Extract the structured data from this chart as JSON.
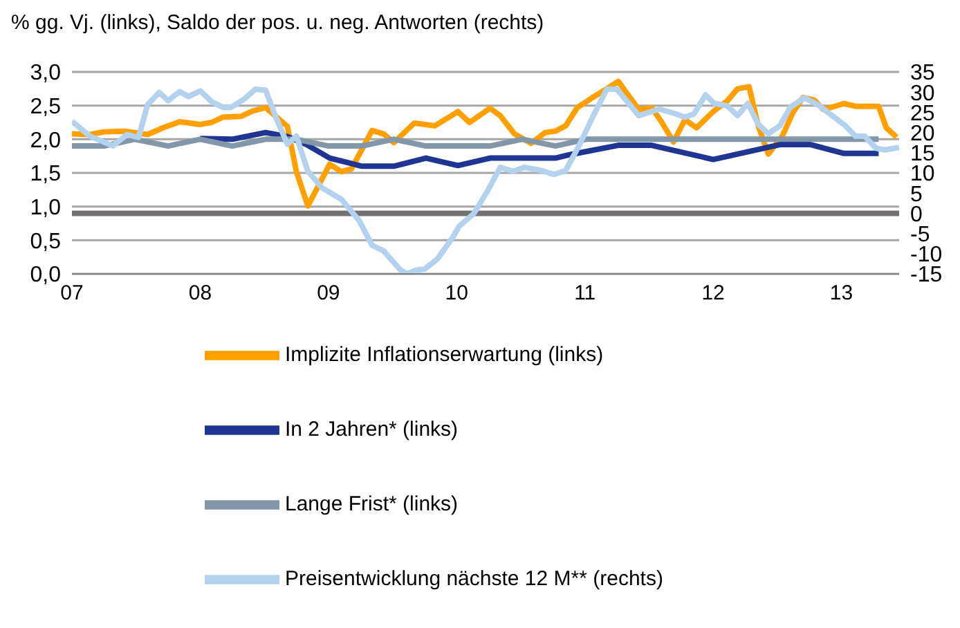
{
  "chart_data": {
    "type": "line",
    "title": "% gg. Vj. (links), Saldo der pos. u. neg. Antworten (rechts)",
    "xlim": [
      2007,
      2013.45
    ],
    "xticks": [
      {
        "value": 2007,
        "label": "07"
      },
      {
        "value": 2008,
        "label": "08"
      },
      {
        "value": 2009,
        "label": "09"
      },
      {
        "value": 2010,
        "label": "10"
      },
      {
        "value": 2011,
        "label": "11"
      },
      {
        "value": 2012,
        "label": "12"
      },
      {
        "value": 2013,
        "label": "13"
      }
    ],
    "ylim": [
      0,
      3
    ],
    "yticks": [
      {
        "value": 0,
        "label": "0,0"
      },
      {
        "value": 0.5,
        "label": "0,5"
      },
      {
        "value": 1,
        "label": "1,0"
      },
      {
        "value": 1.5,
        "label": "1,5"
      },
      {
        "value": 2,
        "label": "2,0"
      },
      {
        "value": 2.5,
        "label": "2,5"
      },
      {
        "value": 3,
        "label": "3,0"
      }
    ],
    "y2lim": [
      -15,
      35
    ],
    "y2ticks": [
      -15,
      -10,
      -5,
      0,
      5,
      10,
      15,
      20,
      25,
      30,
      35
    ],
    "grid": "y",
    "legend": "bottom",
    "marker": "none",
    "line_style": "solid",
    "ref_lines": [
      {
        "axis": "y2",
        "value": 0,
        "color": "#767171"
      }
    ],
    "series": [
      {
        "name": "Implizite Inflationserwartung (links)",
        "color": "#ffa000",
        "x": [
          2007.0,
          2007.14,
          2007.25,
          2007.41,
          2007.49,
          2007.59,
          2007.71,
          2007.84,
          2008.0,
          2008.09,
          2008.18,
          2008.32,
          2008.41,
          2008.51,
          2008.68,
          2008.75,
          2008.84,
          2009.01,
          2009.1,
          2009.18,
          2009.34,
          2009.43,
          2009.51,
          2009.67,
          2009.83,
          2010.01,
          2010.1,
          2010.26,
          2010.34,
          2010.45,
          2010.58,
          2010.69,
          2010.77,
          2010.85,
          2010.94,
          2011.06,
          2011.17,
          2011.26,
          2011.42,
          2011.52,
          2011.6,
          2011.69,
          2011.78,
          2011.87,
          2012.0,
          2012.11,
          2012.19,
          2012.28,
          2012.35,
          2012.43,
          2012.54,
          2012.62,
          2012.7,
          2012.79,
          2012.86,
          2013.02,
          2013.11,
          2013.29,
          2013.35,
          2013.43
        ],
        "values": [
          2.08,
          2.07,
          2.11,
          2.12,
          2.1,
          2.07,
          2.17,
          2.26,
          2.22,
          2.25,
          2.33,
          2.34,
          2.42,
          2.47,
          2.19,
          1.52,
          1.01,
          1.63,
          1.52,
          1.56,
          2.13,
          2.08,
          1.95,
          2.24,
          2.2,
          2.41,
          2.25,
          2.46,
          2.35,
          2.08,
          1.94,
          2.1,
          2.12,
          2.2,
          2.47,
          2.62,
          2.75,
          2.86,
          2.44,
          2.47,
          2.25,
          1.96,
          2.29,
          2.17,
          2.41,
          2.57,
          2.75,
          2.78,
          2.21,
          1.78,
          2.05,
          2.39,
          2.62,
          2.58,
          2.44,
          2.53,
          2.49,
          2.49,
          2.17,
          2.03
        ]
      },
      {
        "name": "In 2 Jahren* (links)",
        "color": "#1f3591",
        "x": [
          2008.0,
          2008.25,
          2008.51,
          2008.68,
          2008.83,
          2009.01,
          2009.26,
          2009.51,
          2009.76,
          2010.01,
          2010.26,
          2010.77,
          2010.88,
          2011.26,
          2011.52,
          2012.0,
          2012.52,
          2012.76,
          2013.02,
          2013.29
        ],
        "values": [
          2.01,
          2.0,
          2.1,
          2.04,
          1.92,
          1.72,
          1.6,
          1.6,
          1.72,
          1.61,
          1.72,
          1.72,
          1.77,
          1.91,
          1.91,
          1.7,
          1.92,
          1.92,
          1.79,
          1.79
        ]
      },
      {
        "name": "Lange Frist* (links)",
        "color": "#8497a8",
        "x": [
          2007.0,
          2007.25,
          2007.49,
          2007.75,
          2008.0,
          2008.25,
          2008.51,
          2008.75,
          2009.0,
          2009.26,
          2009.51,
          2009.76,
          2010.26,
          2010.51,
          2010.77,
          2011.01,
          2013.29
        ],
        "values": [
          1.9,
          1.9,
          2.0,
          1.9,
          2.0,
          1.9,
          2.0,
          2.0,
          1.9,
          1.9,
          2.0,
          1.9,
          1.9,
          2.0,
          1.9,
          2.0,
          2.0
        ]
      },
      {
        "name": "Preisentwicklung nächste 12 M** (rechts)",
        "color": "#b4d2ee",
        "axis": "y2",
        "x": [
          2007.0,
          2007.14,
          2007.32,
          2007.43,
          2007.52,
          2007.59,
          2007.68,
          2007.75,
          2007.84,
          2007.91,
          2008.0,
          2008.09,
          2008.18,
          2008.24,
          2008.34,
          2008.43,
          2008.51,
          2008.59,
          2008.68,
          2008.75,
          2008.84,
          2008.95,
          2009.1,
          2009.24,
          2009.34,
          2009.43,
          2009.56,
          2009.61,
          2009.69,
          2009.75,
          2009.85,
          2009.97,
          2010.02,
          2010.13,
          2010.24,
          2010.34,
          2010.44,
          2010.53,
          2010.66,
          2010.76,
          2010.85,
          2010.96,
          2011.06,
          2011.17,
          2011.25,
          2011.42,
          2011.58,
          2011.69,
          2011.78,
          2011.85,
          2011.94,
          2012.01,
          2012.11,
          2012.19,
          2012.27,
          2012.35,
          2012.43,
          2012.52,
          2012.6,
          2012.71,
          2012.82,
          2012.91,
          2013.03,
          2013.11,
          2013.18,
          2013.27,
          2013.34,
          2013.45
        ],
        "values": [
          22.8,
          19.1,
          16.7,
          19.5,
          18.8,
          26.9,
          29.9,
          27.9,
          30.1,
          28.9,
          30.3,
          27.6,
          26.2,
          26.2,
          28.2,
          30.7,
          30.5,
          23.8,
          17.1,
          19.1,
          10.4,
          6.3,
          3.5,
          -1.8,
          -7.9,
          -9.3,
          -14.0,
          -15.0,
          -14.0,
          -13.8,
          -11.3,
          -5.9,
          -3.2,
          -0.2,
          5.5,
          11.4,
          10.4,
          11.4,
          10.6,
          9.6,
          10.6,
          17.1,
          23.8,
          30.7,
          30.7,
          24.2,
          25.8,
          24.8,
          23.8,
          24.6,
          29.3,
          27.2,
          26.6,
          24.2,
          27.2,
          22.1,
          19.7,
          21.7,
          26.2,
          28.6,
          26.8,
          24.6,
          21.7,
          19.1,
          19.1,
          16.1,
          15.7,
          16.3
        ]
      }
    ]
  }
}
